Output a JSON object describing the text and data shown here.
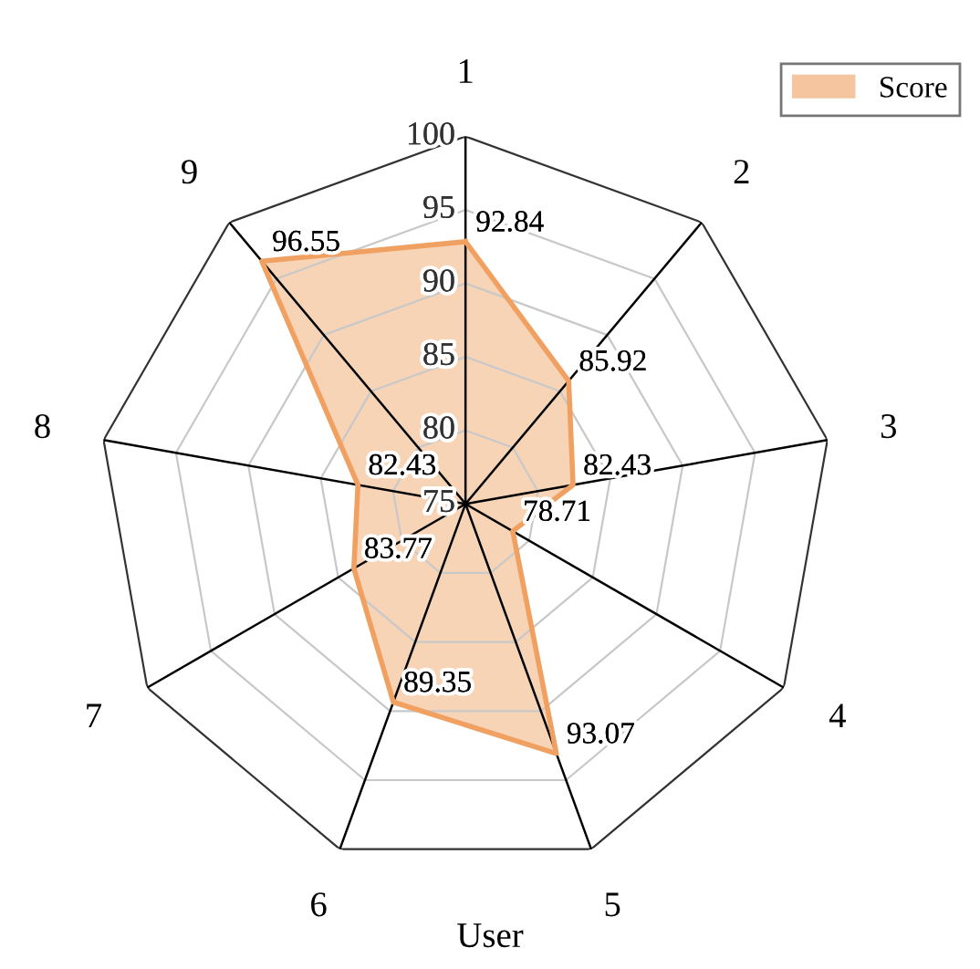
{
  "chart_data": {
    "type": "radar",
    "xlabel": "User",
    "categories": [
      "1",
      "2",
      "3",
      "4",
      "5",
      "6",
      "7",
      "8",
      "9"
    ],
    "series": [
      {
        "name": "Score",
        "color": "#f0a060",
        "values": [
          92.84,
          85.92,
          82.43,
          78.71,
          93.07,
          89.35,
          83.77,
          82.43,
          96.55
        ]
      }
    ],
    "ylim": [
      75,
      100
    ],
    "yticks": [
      75,
      80,
      85,
      90,
      95,
      100
    ],
    "grid": true,
    "legend": "top right",
    "data_labels": true
  }
}
